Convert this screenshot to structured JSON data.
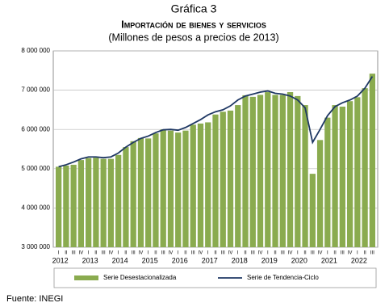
{
  "chart_data": {
    "type": "bar_line",
    "title": "Gráfica 3",
    "subtitle": "Importación de bienes y servicios",
    "note": "(Millones de pesos a precios de 2013)",
    "source": "Fuente: INEGI",
    "categories": [
      "I",
      "II",
      "III",
      "IV",
      "I",
      "II",
      "III",
      "IV",
      "I",
      "II",
      "III",
      "IV",
      "I",
      "II",
      "III",
      "IV",
      "I",
      "II",
      "III",
      "IV",
      "I",
      "II",
      "III",
      "IV",
      "I",
      "II",
      "III",
      "IV",
      "I",
      "II",
      "III",
      "IV",
      "I",
      "II",
      "III",
      "IV",
      "I",
      "II",
      "III",
      "IV",
      "I",
      "II",
      "III"
    ],
    "years": [
      "2012",
      "2013",
      "2014",
      "2015",
      "2016",
      "2017",
      "2018",
      "2019",
      "2020",
      "2021",
      "2022"
    ],
    "series": [
      {
        "name": "Serie Desestacionalizada",
        "color": "#8aab4f",
        "kind": "bar",
        "values": [
          5050000,
          5080000,
          5100000,
          5220000,
          5270000,
          5280000,
          5250000,
          5250000,
          5350000,
          5550000,
          5700000,
          5780000,
          5770000,
          5900000,
          6000000,
          5970000,
          5920000,
          5970000,
          6120000,
          6150000,
          6180000,
          6380000,
          6450000,
          6480000,
          6620000,
          6870000,
          6830000,
          6880000,
          6950000,
          6880000,
          6880000,
          6950000,
          6850000,
          6620000,
          4870000,
          5730000,
          6300000,
          6620000,
          6580000,
          6720000,
          6820000,
          7050000,
          7420000
        ]
      },
      {
        "name": "Serie de Tendencia-Ciclo",
        "color": "#1f3864",
        "kind": "line",
        "values": [
          5050000,
          5100000,
          5170000,
          5250000,
          5300000,
          5300000,
          5280000,
          5300000,
          5400000,
          5550000,
          5670000,
          5770000,
          5830000,
          5920000,
          5990000,
          6000000,
          5980000,
          6050000,
          6150000,
          6250000,
          6370000,
          6450000,
          6500000,
          6600000,
          6750000,
          6850000,
          6900000,
          6950000,
          6980000,
          6920000,
          6900000,
          6850000,
          6750000,
          6550000,
          5670000,
          6000000,
          6350000,
          6580000,
          6680000,
          6750000,
          6850000,
          7050000,
          7350000
        ]
      }
    ],
    "ylim": [
      3000000,
      8000000
    ],
    "yticks": [
      {
        "value": 3000000,
        "label": "3 000 000"
      },
      {
        "value": 4000000,
        "label": "4 000 000"
      },
      {
        "value": 5000000,
        "label": "5 000 000"
      },
      {
        "value": 6000000,
        "label": "6 000 000"
      },
      {
        "value": 7000000,
        "label": "7 000 000"
      },
      {
        "value": 8000000,
        "label": "8 000 000"
      }
    ],
    "grid": true
  }
}
